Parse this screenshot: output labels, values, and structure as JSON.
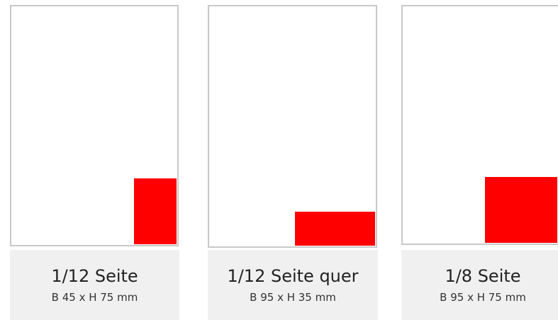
{
  "colors": {
    "ad_fill": "#ff0000",
    "page_border": "#c8c8c8",
    "caption_bg": "#f0f0f0"
  },
  "formats": [
    {
      "title": "1/12 Seite",
      "size": "B 45 x H 75 mm"
    },
    {
      "title": "1/12 Seite quer",
      "size": "B 95 x H 35 mm"
    },
    {
      "title": "1/8 Seite",
      "size": "B 95 x H 75 mm"
    }
  ]
}
